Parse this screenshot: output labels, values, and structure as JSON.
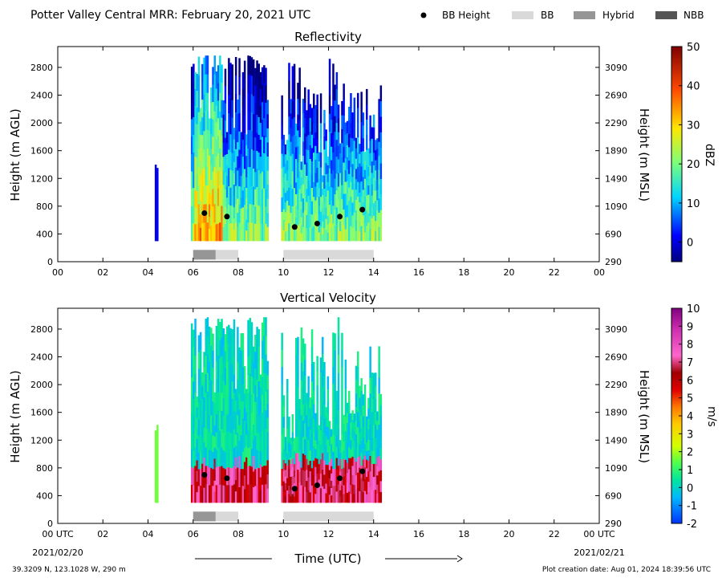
{
  "title": "Potter Valley Central MRR:  February 20, 2021 UTC",
  "legend": [
    {
      "label": "BB Height",
      "marker": "dot",
      "color": "#000000"
    },
    {
      "label": "BB",
      "marker": "rect",
      "color": "#d9d9d9"
    },
    {
      "label": "Hybrid",
      "marker": "rect",
      "color": "#969696"
    },
    {
      "label": "NBB",
      "marker": "rect",
      "color": "#555555"
    }
  ],
  "footer": {
    "location": "39.3209 N, 123.1028 W, 290 m",
    "created": "Plot creation date: Aug 01, 2024 18:39:56 UTC"
  },
  "xaxis": {
    "label": "Time (UTC)",
    "range": [
      0,
      24
    ],
    "ticks": [
      0,
      2,
      4,
      6,
      8,
      10,
      12,
      14,
      16,
      18,
      20,
      22,
      24
    ],
    "tick_labels": [
      "00",
      "02",
      "04",
      "06",
      "08",
      "10",
      "12",
      "14",
      "16",
      "18",
      "20",
      "22",
      "00"
    ],
    "tick_labels_bottom": [
      "00 UTC",
      "02",
      "04",
      "06",
      "08",
      "10",
      "12",
      "14",
      "16",
      "18",
      "20",
      "22",
      "00 UTC"
    ],
    "start_date": "2021/02/20",
    "end_date": "2021/02/21"
  },
  "chart_data": [
    {
      "type": "heatmap",
      "title": "Reflectivity",
      "ylabel": "Height (m AGL)",
      "ylabel_right": "Height (m MSL)",
      "ylim": [
        0,
        3100
      ],
      "yticks": [
        0,
        400,
        800,
        1200,
        1600,
        2000,
        2400,
        2800
      ],
      "yticks_right": [
        290,
        690,
        1090,
        1490,
        1890,
        2290,
        2690,
        3090
      ],
      "colorbar": {
        "label": "dBZ",
        "range": [
          -5,
          50
        ],
        "ticks": [
          0,
          10,
          20,
          30,
          40,
          50
        ]
      },
      "data_periods_hours": [
        [
          4.3,
          4.45
        ],
        [
          5.9,
          9.3
        ],
        [
          9.9,
          14.3
        ]
      ],
      "bright_band_heights": [
        {
          "time": 6.5,
          "height": 700
        },
        {
          "time": 7.5,
          "height": 650
        },
        {
          "time": 10.5,
          "height": 500
        },
        {
          "time": 11.5,
          "height": 550
        },
        {
          "time": 12.5,
          "height": 650
        },
        {
          "time": 13.5,
          "height": 750
        }
      ],
      "bright_band_type_periods": [
        {
          "start": 6.0,
          "end": 7.0,
          "type": "Hybrid"
        },
        {
          "start": 7.0,
          "end": 8.0,
          "type": "BB"
        },
        {
          "start": 10.0,
          "end": 14.0,
          "type": "BB"
        }
      ]
    },
    {
      "type": "heatmap",
      "title": "Vertical Velocity",
      "ylabel": "Height (m AGL)",
      "ylabel_right": "Height (m MSL)",
      "ylim": [
        0,
        3100
      ],
      "yticks": [
        0,
        400,
        800,
        1200,
        1600,
        2000,
        2400,
        2800
      ],
      "yticks_right": [
        290,
        690,
        1090,
        1490,
        1890,
        2290,
        2690,
        3090
      ],
      "colorbar": {
        "label": "m/s",
        "range": [
          -2,
          10
        ],
        "ticks": [
          -2,
          -1,
          0,
          1,
          2,
          3,
          4,
          5,
          6,
          7,
          8,
          9,
          10
        ]
      },
      "data_periods_hours": [
        [
          4.3,
          4.45
        ],
        [
          5.9,
          9.3
        ],
        [
          9.9,
          14.3
        ]
      ],
      "bright_band_heights": [
        {
          "time": 6.5,
          "height": 700
        },
        {
          "time": 7.5,
          "height": 650
        },
        {
          "time": 10.5,
          "height": 500
        },
        {
          "time": 11.5,
          "height": 550
        },
        {
          "time": 12.5,
          "height": 650
        },
        {
          "time": 13.5,
          "height": 750
        }
      ],
      "bright_band_type_periods": [
        {
          "start": 6.0,
          "end": 7.0,
          "type": "Hybrid"
        },
        {
          "start": 7.0,
          "end": 8.0,
          "type": "BB"
        },
        {
          "start": 10.0,
          "end": 14.0,
          "type": "BB"
        }
      ]
    }
  ]
}
